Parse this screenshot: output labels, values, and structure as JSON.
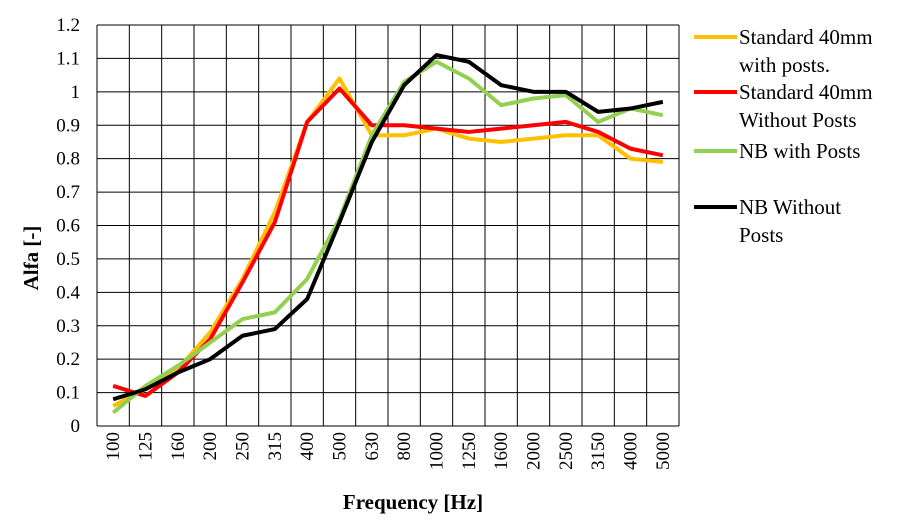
{
  "chart_data": {
    "type": "line",
    "title": "",
    "xlabel": "Frequency [Hz]",
    "ylabel": "Alfa [-]",
    "categories": [
      "100",
      "125",
      "160",
      "200",
      "250",
      "315",
      "400",
      "500",
      "630",
      "800",
      "1000",
      "1250",
      "1600",
      "2000",
      "2500",
      "3150",
      "4000",
      "5000"
    ],
    "ylim": [
      0,
      1.2
    ],
    "yticks": [
      "0",
      "0.1",
      "0.2",
      "0.3",
      "0.4",
      "0.5",
      "0.6",
      "0.7",
      "0.8",
      "0.9",
      "1",
      "1.1",
      "1.2"
    ],
    "grid": true,
    "legend_position": "right",
    "series": [
      {
        "name": "Standard 40mm with posts.",
        "legend_lines": [
          "Standard 40mm",
          "with posts."
        ],
        "color": "#FFC000",
        "values": [
          0.06,
          0.11,
          0.17,
          0.28,
          0.44,
          0.64,
          0.91,
          1.04,
          0.87,
          0.87,
          0.89,
          0.86,
          0.85,
          0.86,
          0.87,
          0.87,
          0.8,
          0.79
        ]
      },
      {
        "name": "Standard 40mm Without Posts",
        "legend_lines": [
          "Standard 40mm",
          "Without Posts"
        ],
        "color": "#FF0000",
        "values": [
          0.12,
          0.09,
          0.16,
          0.26,
          0.43,
          0.61,
          0.91,
          1.01,
          0.9,
          0.9,
          0.89,
          0.88,
          0.89,
          0.9,
          0.91,
          0.88,
          0.83,
          0.81
        ]
      },
      {
        "name": "NB with Posts",
        "legend_lines": [
          "NB with Posts"
        ],
        "color": "#92D050",
        "values": [
          0.04,
          0.12,
          0.18,
          0.25,
          0.32,
          0.34,
          0.44,
          0.62,
          0.87,
          1.03,
          1.09,
          1.04,
          0.96,
          0.98,
          0.99,
          0.91,
          0.95,
          0.93
        ]
      },
      {
        "name": "NB Without Posts",
        "legend_lines": [
          "NB Without",
          "Posts"
        ],
        "color": "#000000",
        "values": [
          0.08,
          0.11,
          0.16,
          0.2,
          0.27,
          0.29,
          0.38,
          0.61,
          0.85,
          1.02,
          1.11,
          1.09,
          1.02,
          1.0,
          1.0,
          0.94,
          0.95,
          0.97
        ]
      }
    ]
  }
}
